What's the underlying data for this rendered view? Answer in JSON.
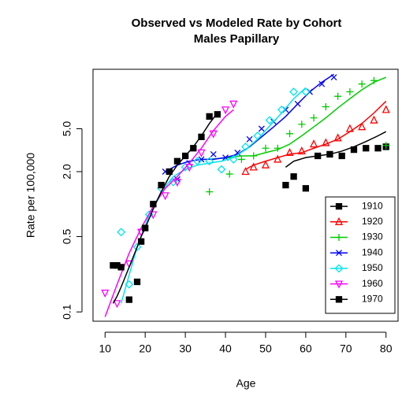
{
  "chart_data": {
    "type": "scatter",
    "title": "Observed vs Modeled Rate by Cohort",
    "subtitle": "Males Papillary",
    "x_label": "Age",
    "y_label": "Rate per 100,000",
    "log_y": true,
    "legend": "bottomright",
    "xlim": [
      7,
      83
    ],
    "ylim": [
      0.082,
      17.8
    ],
    "xticks": [
      10,
      20,
      30,
      40,
      50,
      60,
      70,
      80
    ],
    "yticks": [
      0.1,
      0.5,
      {
        "value": 2,
        "label": "2.0"
      },
      {
        "value": 5,
        "label": "5.0"
      }
    ],
    "series": [
      {
        "name": "1910",
        "color": "#000000",
        "marker": "square",
        "x": [
          55,
          57,
          60,
          63,
          66,
          69,
          72,
          75,
          78,
          80
        ],
        "values": [
          1.5,
          1.8,
          1.4,
          2.8,
          2.9,
          2.8,
          3.2,
          3.3,
          3.3,
          3.4
        ],
        "fitted": [
          2.2,
          2.5,
          2.7,
          2.8,
          2.9,
          3.1,
          3.4,
          3.8,
          4.3,
          4.7
        ]
      },
      {
        "name": "1920",
        "color": "#ff0000",
        "marker": "triangle",
        "x": [
          45,
          47,
          50,
          53,
          56,
          59,
          62,
          65,
          68,
          71,
          74,
          77,
          80
        ],
        "values": [
          2.0,
          2.2,
          2.3,
          2.6,
          3.0,
          3.1,
          3.6,
          3.7,
          4.1,
          5.0,
          5.2,
          6.0,
          7.5
        ],
        "fitted": [
          2.1,
          2.3,
          2.5,
          2.7,
          2.9,
          3.0,
          3.3,
          3.6,
          4.0,
          4.7,
          5.6,
          7.0,
          9.0
        ]
      },
      {
        "name": "1930",
        "color": "#00cd00",
        "marker": "plus",
        "x": [
          36,
          41,
          44,
          47,
          50,
          53,
          56,
          59,
          62,
          65,
          68,
          71,
          74,
          77,
          80
        ],
        "values": [
          1.3,
          1.9,
          2.6,
          2.8,
          3.3,
          3.3,
          4.5,
          5.5,
          6.3,
          8.0,
          10,
          11,
          13,
          14,
          3.5
        ],
        "fitted": [
          2.6,
          2.7,
          2.8,
          2.8,
          3.0,
          3.2,
          3.6,
          4.3,
          5.2,
          6.3,
          7.8,
          9.5,
          11.5,
          13.5,
          15
        ]
      },
      {
        "name": "1940",
        "color": "#0000ff",
        "marker": "x",
        "x": [
          25,
          28,
          31,
          34,
          37,
          40,
          43,
          46,
          49,
          52,
          55,
          58,
          61,
          64,
          67
        ],
        "values": [
          2.0,
          1.7,
          2.4,
          2.6,
          2.9,
          2.7,
          3.0,
          4.0,
          5.0,
          5.8,
          7.5,
          8.5,
          11,
          13,
          15
        ],
        "fitted": [
          2.0,
          2.3,
          2.5,
          2.6,
          2.6,
          2.7,
          2.9,
          3.4,
          4.2,
          5.2,
          6.5,
          8.5,
          11,
          13.5,
          16
        ]
      },
      {
        "name": "1950",
        "color": "#00e5ee",
        "marker": "diamond",
        "x": [
          14,
          16,
          18,
          21,
          24,
          27,
          30,
          33,
          36,
          39,
          42,
          45,
          48,
          51,
          54,
          57,
          60
        ],
        "values": [
          0.55,
          0.18,
          0.4,
          0.8,
          1.4,
          1.6,
          2.2,
          2.5,
          2.5,
          2.1,
          2.6,
          3.4,
          4.3,
          6.0,
          7.5,
          11,
          11
        ],
        "fitted": [
          0.12,
          0.22,
          0.4,
          0.8,
          1.3,
          1.8,
          2.1,
          2.3,
          2.4,
          2.5,
          2.7,
          3.2,
          4.0,
          5.3,
          7.0,
          9.5,
          12
        ]
      },
      {
        "name": "1960",
        "color": "#ff00ff",
        "marker": "invtriangle",
        "x": [
          10,
          13,
          16,
          19,
          22,
          25,
          28,
          31,
          34,
          37,
          40,
          42
        ],
        "values": [
          0.15,
          0.12,
          0.28,
          0.55,
          0.8,
          1.2,
          1.6,
          2.2,
          3.0,
          4.5,
          7.5,
          8.5
        ],
        "fitted": [
          0.09,
          0.18,
          0.35,
          0.6,
          0.95,
          1.4,
          1.8,
          2.4,
          3.3,
          4.8,
          6.5,
          7.5
        ]
      },
      {
        "name": "1970",
        "color": "#000000",
        "marker": "square",
        "x": [
          12,
          13,
          14,
          16,
          18,
          19,
          20,
          22,
          24,
          26,
          28,
          30,
          32,
          34,
          36,
          38
        ],
        "values": [
          0.27,
          0.27,
          0.26,
          0.13,
          0.19,
          0.45,
          0.6,
          1.0,
          1.5,
          2.0,
          2.5,
          2.8,
          3.3,
          4.2,
          6.5,
          6.8
        ],
        "fitted": [
          0.12,
          0.14,
          0.17,
          0.26,
          0.4,
          0.5,
          0.6,
          0.9,
          1.3,
          1.8,
          2.3,
          2.8,
          3.4,
          4.3,
          5.6,
          7.0
        ]
      }
    ]
  }
}
